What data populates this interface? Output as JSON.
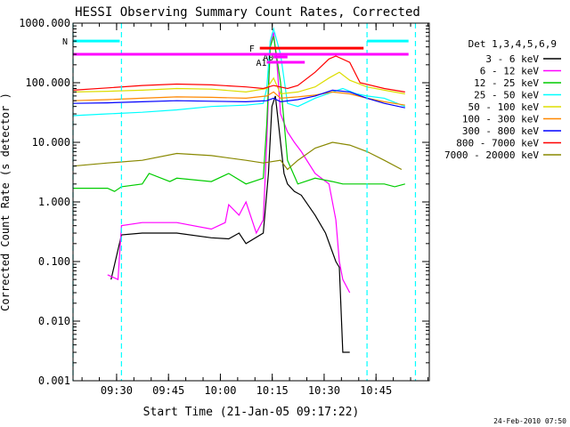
{
  "chart_data": {
    "type": "line",
    "title": "HESSI Observing Summary Count Rates, Corrected",
    "xlabel": "Start Time (21-Jan-05 09:17:22)",
    "ylabel": "Corrected Count Rate (s⁻¹ detector⁻¹)",
    "ylabel_visible": "Corrected Count Rate (s  detector  )",
    "yscale": "log",
    "xlim_minutes_after_0917": [
      0,
      103
    ],
    "ylim": [
      0.001,
      1000
    ],
    "x_ticks": [
      "09:30",
      "09:45",
      "10:00",
      "10:15",
      "10:30",
      "10:45"
    ],
    "x_tick_minutes": [
      12.6,
      27.6,
      42.6,
      57.6,
      72.6,
      87.6
    ],
    "y_ticks": [
      "0.001",
      "0.010",
      "0.100",
      "1.000",
      "10.000",
      "100.000",
      "1000.000"
    ],
    "y_tick_values": [
      0.001,
      0.01,
      0.1,
      1,
      10,
      100,
      1000
    ],
    "timestamp": "24-Feb-2010 07:50",
    "legend": {
      "header": "Det 1,3,4,5,6,9",
      "placement": "right"
    },
    "series": [
      {
        "name": "3 - 6 keV",
        "color": "#000000",
        "points": [
          [
            11,
            0.05
          ],
          [
            14,
            0.28
          ],
          [
            20,
            0.3
          ],
          [
            30,
            0.3
          ],
          [
            40,
            0.25
          ],
          [
            45,
            0.24
          ],
          [
            48,
            0.3
          ],
          [
            50,
            0.2
          ],
          [
            55,
            0.3
          ],
          [
            56.5,
            3
          ],
          [
            57.5,
            40
          ],
          [
            58.5,
            60
          ],
          [
            60,
            10
          ],
          [
            61,
            3
          ],
          [
            62,
            2
          ],
          [
            64,
            1.5
          ],
          [
            66,
            1.3
          ],
          [
            70,
            0.6
          ],
          [
            73,
            0.3
          ],
          [
            76,
            0.1
          ],
          [
            77,
            0.08
          ],
          [
            78,
            0.003
          ],
          [
            80,
            0.003
          ]
        ]
      },
      {
        "name": "6 - 12 keV",
        "color": "#ff00ff",
        "points": [
          [
            10,
            0.06
          ],
          [
            13,
            0.05
          ],
          [
            14,
            0.4
          ],
          [
            20,
            0.45
          ],
          [
            30,
            0.45
          ],
          [
            40,
            0.35
          ],
          [
            44,
            0.45
          ],
          [
            45,
            0.9
          ],
          [
            48,
            0.6
          ],
          [
            50,
            1.0
          ],
          [
            53,
            0.3
          ],
          [
            55,
            0.5
          ],
          [
            56,
            10
          ],
          [
            57,
            400
          ],
          [
            58,
            700
          ],
          [
            59,
            200
          ],
          [
            60,
            30
          ],
          [
            62,
            15
          ],
          [
            64,
            10
          ],
          [
            66,
            7
          ],
          [
            70,
            3
          ],
          [
            74,
            2
          ],
          [
            76,
            0.5
          ],
          [
            77,
            0.1
          ],
          [
            78,
            0.05
          ],
          [
            80,
            0.03
          ]
        ]
      },
      {
        "name": "12 - 25 keV",
        "color": "#00cc00",
        "points": [
          [
            0,
            1.7
          ],
          [
            10,
            1.7
          ],
          [
            12,
            1.5
          ],
          [
            14,
            1.8
          ],
          [
            20,
            2
          ],
          [
            22,
            3
          ],
          [
            28,
            2.2
          ],
          [
            30,
            2.5
          ],
          [
            40,
            2.2
          ],
          [
            45,
            3
          ],
          [
            50,
            2
          ],
          [
            55,
            2.5
          ],
          [
            56,
            20
          ],
          [
            57,
            400
          ],
          [
            58,
            600
          ],
          [
            60,
            100
          ],
          [
            62,
            5
          ],
          [
            65,
            2
          ],
          [
            70,
            2.5
          ],
          [
            75,
            2.2
          ],
          [
            78,
            2
          ],
          [
            85,
            2
          ],
          [
            90,
            2
          ],
          [
            93,
            1.8
          ],
          [
            96,
            2
          ]
        ]
      },
      {
        "name": "25 - 50 keV",
        "color": "#00ffff",
        "points": [
          [
            0,
            28
          ],
          [
            10,
            30
          ],
          [
            20,
            32
          ],
          [
            30,
            35
          ],
          [
            40,
            40
          ],
          [
            50,
            42
          ],
          [
            55,
            45
          ],
          [
            56,
            80
          ],
          [
            57,
            500
          ],
          [
            58,
            800
          ],
          [
            60,
            300
          ],
          [
            62,
            45
          ],
          [
            65,
            40
          ],
          [
            70,
            55
          ],
          [
            75,
            70
          ],
          [
            78,
            80
          ],
          [
            82,
            65
          ],
          [
            85,
            60
          ],
          [
            90,
            55
          ],
          [
            96,
            40
          ]
        ]
      },
      {
        "name": "50 - 100 keV",
        "color": "#dddd00",
        "points": [
          [
            0,
            70
          ],
          [
            10,
            72
          ],
          [
            20,
            75
          ],
          [
            30,
            80
          ],
          [
            40,
            78
          ],
          [
            50,
            70
          ],
          [
            56,
            80
          ],
          [
            58,
            120
          ],
          [
            60,
            65
          ],
          [
            65,
            70
          ],
          [
            70,
            85
          ],
          [
            74,
            120
          ],
          [
            77,
            150
          ],
          [
            80,
            110
          ],
          [
            85,
            85
          ],
          [
            90,
            75
          ],
          [
            96,
            65
          ]
        ]
      },
      {
        "name": "100 - 300 keV",
        "color": "#ff8800",
        "points": [
          [
            0,
            50
          ],
          [
            10,
            52
          ],
          [
            20,
            55
          ],
          [
            30,
            58
          ],
          [
            40,
            57
          ],
          [
            50,
            55
          ],
          [
            56,
            60
          ],
          [
            58,
            70
          ],
          [
            60,
            55
          ],
          [
            65,
            58
          ],
          [
            70,
            62
          ],
          [
            75,
            70
          ],
          [
            80,
            65
          ],
          [
            85,
            55
          ],
          [
            90,
            48
          ],
          [
            96,
            42
          ]
        ]
      },
      {
        "name": "300 - 800 keV",
        "color": "#0000ff",
        "points": [
          [
            0,
            45
          ],
          [
            10,
            46
          ],
          [
            20,
            48
          ],
          [
            30,
            50
          ],
          [
            40,
            49
          ],
          [
            50,
            48
          ],
          [
            56,
            50
          ],
          [
            58,
            55
          ],
          [
            60,
            48
          ],
          [
            65,
            52
          ],
          [
            70,
            60
          ],
          [
            75,
            75
          ],
          [
            80,
            70
          ],
          [
            85,
            55
          ],
          [
            90,
            45
          ],
          [
            96,
            38
          ]
        ]
      },
      {
        "name": "800 - 7000 keV",
        "color": "#ff0000",
        "points": [
          [
            0,
            75
          ],
          [
            10,
            82
          ],
          [
            20,
            90
          ],
          [
            30,
            95
          ],
          [
            40,
            92
          ],
          [
            50,
            85
          ],
          [
            55,
            80
          ],
          [
            58,
            90
          ],
          [
            62,
            80
          ],
          [
            65,
            90
          ],
          [
            70,
            150
          ],
          [
            74,
            250
          ],
          [
            76,
            280
          ],
          [
            80,
            220
          ],
          [
            83,
            100
          ],
          [
            90,
            80
          ],
          [
            96,
            70
          ]
        ]
      },
      {
        "name": "7000 - 20000 keV",
        "color": "#888800",
        "points": [
          [
            0,
            4
          ],
          [
            10,
            4.5
          ],
          [
            20,
            5
          ],
          [
            30,
            6.5
          ],
          [
            40,
            6
          ],
          [
            50,
            5
          ],
          [
            55,
            4.5
          ],
          [
            60,
            5
          ],
          [
            62,
            3.5
          ],
          [
            65,
            5
          ],
          [
            70,
            8
          ],
          [
            75,
            10
          ],
          [
            80,
            9
          ],
          [
            85,
            7
          ],
          [
            90,
            5
          ],
          [
            95,
            3.5
          ]
        ]
      }
    ],
    "annotations": [
      {
        "label": "N",
        "color": "#00ffff",
        "x_range": [
          0,
          13.5
        ],
        "y": 500
      },
      {
        "label": "",
        "color": "#00ffff",
        "x_range": [
          85,
          97
        ],
        "y": 500
      },
      {
        "label": "F",
        "color": "#ff0000",
        "x_range": [
          54,
          84
        ],
        "y": 380
      },
      {
        "label": "A1",
        "color": "#ff00ff",
        "x_range": [
          56,
          67
        ],
        "y": 220
      },
      {
        "label": "A0",
        "color": "#ff00ff",
        "x_range": [
          58,
          62
        ],
        "y": 270
      },
      {
        "label": "",
        "color": "#ff00ff",
        "x_range": [
          0,
          97
        ],
        "y": 300
      }
    ],
    "vertical_markers": [
      {
        "x": 0,
        "color": "#00ffff"
      },
      {
        "x": 14,
        "color": "#00ffff"
      },
      {
        "x": 85,
        "color": "#00ffff"
      },
      {
        "x": 99,
        "color": "#00ffff"
      }
    ]
  }
}
